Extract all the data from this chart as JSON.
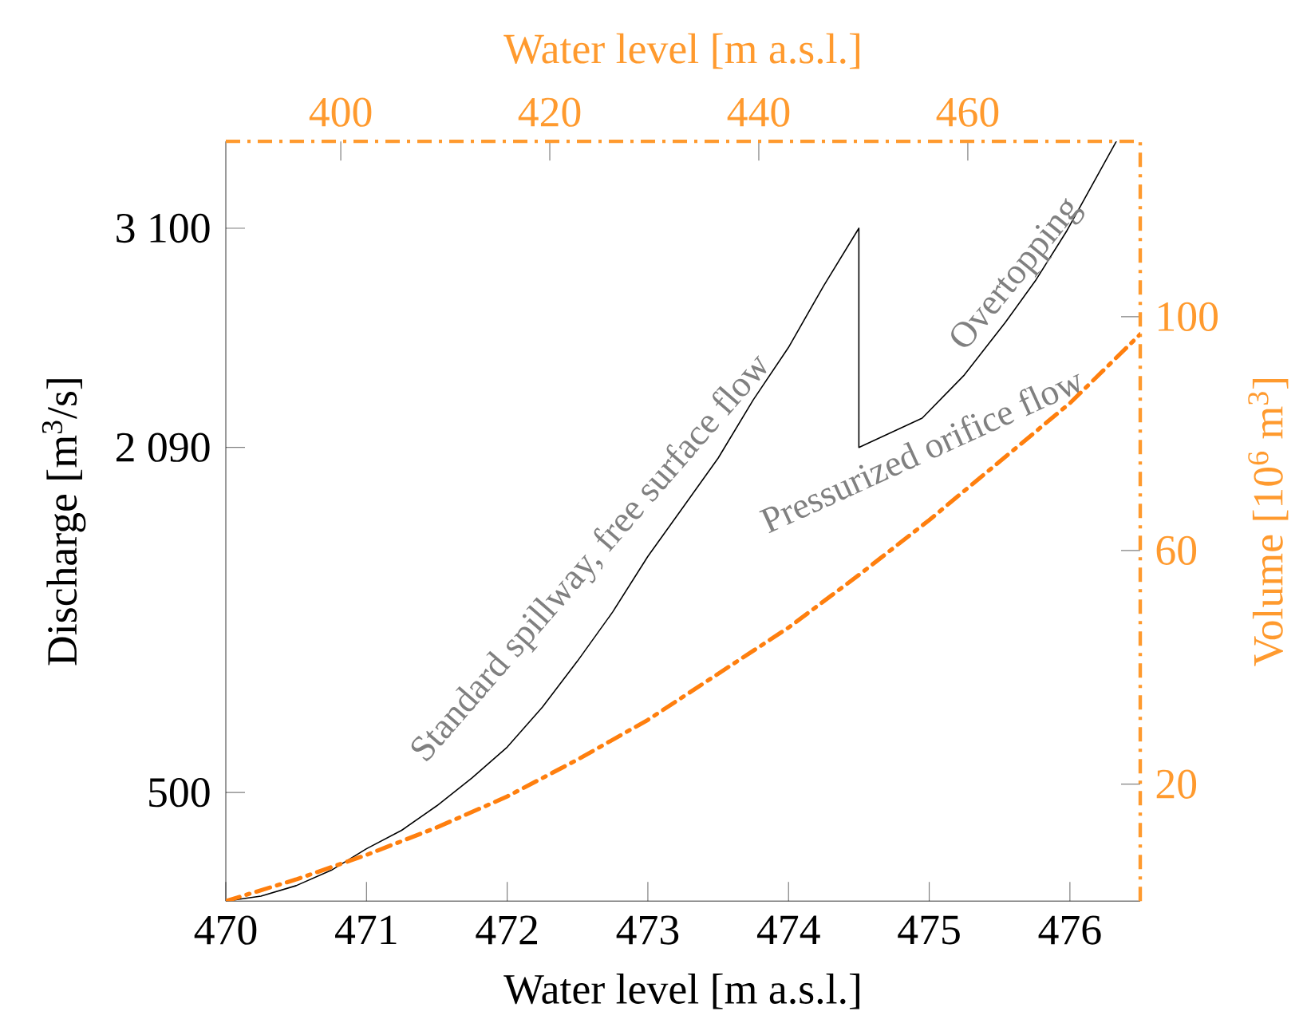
{
  "chart_data": {
    "type": "line",
    "xlabel": "Water level [m a.s.l.]",
    "ylabel": "Discharge [m$^{3}$/s]",
    "x2label": "Water level [m a.s.l.]",
    "y2label": "Volume [10$^{6}$ m$^{3}$]",
    "xlim": [
      470,
      476.5
    ],
    "xticks": [
      470,
      471,
      472,
      473,
      474,
      475,
      476
    ],
    "ylim": [
      0,
      3500
    ],
    "yticks": [
      {
        "value": 500,
        "label": "500"
      },
      {
        "value": 2090,
        "label": "2 090"
      },
      {
        "value": 3100,
        "label": "3 100"
      }
    ],
    "x2lim": [
      389,
      476.5
    ],
    "x2ticks": [
      400,
      420,
      440,
      460
    ],
    "y2lim": [
      0,
      130
    ],
    "y2ticks": [
      20,
      60,
      100
    ],
    "series": [
      {
        "color": "#000000",
        "line_style": "solid",
        "x": [
          470,
          470.25,
          470.5,
          470.75,
          471,
          471.25,
          471.5,
          471.75,
          472,
          472.25,
          472.5,
          472.75,
          473,
          473.25,
          473.5,
          473.75,
          474,
          474.25,
          474.5,
          474.5,
          474.95,
          475.25,
          475.54,
          475.76,
          475.98,
          476.33
        ],
        "values": [
          0,
          23,
          71,
          142,
          241,
          326,
          439,
          567,
          709,
          893,
          1106,
          1332,
          1588,
          1814,
          2041,
          2310,
          2551,
          2835,
          3100,
          2090,
          2225,
          2424,
          2665,
          2863,
          3090,
          3500
        ]
      },
      {
        "color": "#ff7f0e",
        "line_style": "dashdot",
        "axis": "y2",
        "x": [
          470,
          470.5,
          471,
          471.5,
          472,
          472.5,
          473,
          473.5,
          474,
          474.5,
          475,
          475.5,
          476,
          476.5
        ],
        "values": [
          0,
          3.7,
          7.9,
          12.6,
          17.9,
          24.2,
          31,
          38.9,
          46.8,
          55.8,
          65.2,
          75.2,
          85.2,
          97
        ]
      }
    ],
    "annotations": [
      "Standard spillway, free surface flow",
      "Pressurized orifice flow",
      "Overtopping"
    ]
  }
}
